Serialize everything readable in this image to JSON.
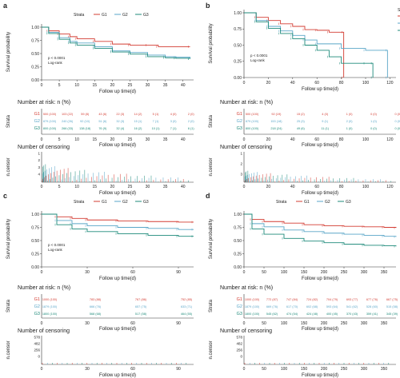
{
  "colors": {
    "G1": "#d33c32",
    "G2": "#5aa6c8",
    "G3": "#1d8a7a",
    "axis": "#333333",
    "grey": "#666666"
  },
  "common": {
    "strata_title": "Strata",
    "strata_labels": [
      "G1",
      "G2",
      "G3"
    ],
    "ylabel_surv": "Survival probability",
    "ylabel_risk": "Strata",
    "ylabel_cens": "n.censor",
    "xlabel": "Follow up time(d)",
    "risk_title": "Number at risk: n (%)",
    "cens_title": "Number of censoring",
    "yticks": [
      "0.00",
      "0.25",
      "0.50",
      "0.75",
      "1.00"
    ]
  },
  "panels": [
    {
      "letter": "a",
      "legend": "top",
      "pvalue": "p < 0.0001",
      "test": "Log-rank",
      "x_ticks": [
        0,
        5,
        10,
        15,
        20,
        25,
        30,
        35,
        40
      ],
      "xmax": 43,
      "risk_table": [
        [
          "500 (100)",
          "103 (22)",
          "59 (8)",
          "43 (6)",
          "22 (3)",
          "14 (2)",
          "5 (1)",
          "4 (0)",
          "2 (0)"
        ],
        [
          "879 (100)",
          "240 (26)",
          "92 (10)",
          "51 (6)",
          "32 (3)",
          "15 (1)",
          "7 (1)",
          "3 (0)",
          "2 (0)"
        ],
        [
          "800 (100)",
          "266 (33)",
          "138 (18)",
          "76 (9)",
          "32 (4)",
          "16 (2)",
          "10 (1)",
          "7 (1)",
          "6 (1)"
        ]
      ],
      "cens_ticks": [
        "1",
        "2",
        "3",
        "4"
      ],
      "chart_data": {
        "type": "line",
        "title": "",
        "xlabel": "Follow up time(d)",
        "ylabel": "Survival probability",
        "ylim": [
          0,
          1
        ],
        "xlim": [
          0,
          43
        ],
        "series": [
          {
            "name": "G1",
            "x": [
              0,
              2,
              5,
              8,
              10,
              15,
              20,
              25,
              30,
              33,
              42
            ],
            "y": [
              1.0,
              0.93,
              0.87,
              0.82,
              0.78,
              0.73,
              0.68,
              0.66,
              0.66,
              0.63,
              0.63
            ]
          },
          {
            "name": "G2",
            "x": [
              0,
              2,
              5,
              8,
              10,
              15,
              20,
              25,
              30,
              35,
              38,
              42
            ],
            "y": [
              1.0,
              0.9,
              0.8,
              0.73,
              0.7,
              0.63,
              0.55,
              0.52,
              0.47,
              0.44,
              0.43,
              0.4
            ]
          },
          {
            "name": "G3",
            "x": [
              0,
              2,
              5,
              8,
              10,
              15,
              20,
              25,
              30,
              35,
              38,
              42
            ],
            "y": [
              1.0,
              0.88,
              0.77,
              0.7,
              0.66,
              0.6,
              0.53,
              0.49,
              0.44,
              0.42,
              0.41,
              0.4
            ]
          }
        ]
      }
    },
    {
      "letter": "b",
      "legend": "right",
      "pvalue": "p < 0.0001",
      "test": "Log-rank",
      "x_ticks": [
        0,
        20,
        40,
        60,
        80,
        100,
        120
      ],
      "xmax": 125,
      "risk_table": [
        [
          "500 (100)",
          "92 (19)",
          "15 (2)",
          "4 (0)",
          "1 (0)",
          "0 (0)",
          "0 (0)"
        ],
        [
          "879 (100)",
          "153 (18)",
          "25 (3)",
          "9 (1)",
          "2 (0)",
          "1 (0)",
          "0 (0)"
        ],
        [
          "800 (100)",
          "218 (24)",
          "49 (6)",
          "11 (1)",
          "1 (0)",
          "0 (0)",
          "0 (0)"
        ]
      ],
      "cens_ticks": [
        "1",
        "2",
        "3"
      ],
      "chart_data": {
        "type": "line",
        "title": "",
        "xlabel": "Follow up time(d)",
        "ylabel": "Survival probability",
        "ylim": [
          0,
          1
        ],
        "xlim": [
          0,
          125
        ],
        "series": [
          {
            "name": "G1",
            "x": [
              0,
              10,
              20,
              30,
              40,
              50,
              60,
              70,
              82,
              82
            ],
            "y": [
              1.0,
              0.93,
              0.88,
              0.83,
              0.79,
              0.74,
              0.73,
              0.7,
              0.7,
              0.0
            ]
          },
          {
            "name": "G2",
            "x": [
              0,
              10,
              20,
              30,
              40,
              50,
              60,
              80,
              100,
              118,
              118
            ],
            "y": [
              1.0,
              0.88,
              0.79,
              0.72,
              0.65,
              0.58,
              0.52,
              0.45,
              0.42,
              0.42,
              0.0
            ]
          },
          {
            "name": "G3",
            "x": [
              0,
              10,
              20,
              30,
              40,
              50,
              60,
              70,
              80,
              100,
              106,
              106
            ],
            "y": [
              1.0,
              0.86,
              0.76,
              0.68,
              0.6,
              0.5,
              0.42,
              0.32,
              0.22,
              0.22,
              0.22,
              0.0
            ]
          }
        ]
      }
    },
    {
      "letter": "c",
      "legend": "top",
      "pvalue": "p < 0.0001",
      "test": "Log-rank",
      "x_ticks": [
        0,
        30,
        60,
        90
      ],
      "xmax": 100,
      "risk_table": [
        [
          "1000 (100)",
          "783 (88)",
          "767 (86)",
          "752 (85)"
        ],
        [
          "1879 (100)",
          "666 (76)",
          "657 (75)",
          "633 (71)"
        ],
        [
          "1800 (100)",
          "568 (68)",
          "517 (58)",
          "464 (55)"
        ]
      ],
      "cens_ticks": [
        "578",
        "482",
        "256",
        "0"
      ],
      "chart_data": {
        "type": "line",
        "title": "",
        "xlabel": "Follow up time(d)",
        "ylabel": "Survival probability",
        "ylim": [
          0,
          1
        ],
        "xlim": [
          0,
          100
        ],
        "series": [
          {
            "name": "G1",
            "x": [
              0,
              10,
              20,
              30,
              50,
              70,
              90,
              100
            ],
            "y": [
              1.0,
              0.95,
              0.92,
              0.89,
              0.87,
              0.86,
              0.85,
              0.85
            ]
          },
          {
            "name": "G2",
            "x": [
              0,
              10,
              20,
              30,
              50,
              70,
              90,
              100
            ],
            "y": [
              1.0,
              0.88,
              0.82,
              0.78,
              0.75,
              0.73,
              0.71,
              0.71
            ]
          },
          {
            "name": "G3",
            "x": [
              0,
              10,
              20,
              30,
              50,
              70,
              90,
              100
            ],
            "y": [
              1.0,
              0.8,
              0.72,
              0.67,
              0.63,
              0.6,
              0.58,
              0.58
            ]
          }
        ]
      }
    },
    {
      "letter": "d",
      "legend": "top",
      "pvalue": "",
      "test": "",
      "x_ticks": [
        0,
        50,
        100,
        150,
        200,
        250,
        300,
        350
      ],
      "xmax": 380,
      "risk_table": [
        [
          "1000 (100)",
          "772 (87)",
          "747 (84)",
          "724 (82)",
          "704 (79)",
          "693 (77)",
          "677 (76)",
          "667 (75)"
        ],
        [
          "1879 (100)",
          "669 (76)",
          "617 (70)",
          "602 (68)",
          "593 (64)",
          "541 (62)",
          "528 (60)",
          "515 (58)"
        ],
        [
          "1800 (100)",
          "545 (62)",
          "474 (54)",
          "424 (48)",
          "400 (45)",
          "370 (43)",
          "359 (41)",
          "345 (39)"
        ]
      ],
      "cens_ticks": [
        "578",
        "482",
        "256",
        "0"
      ],
      "chart_data": {
        "type": "line",
        "title": "",
        "xlabel": "Follow up time(d)",
        "ylabel": "Survival probability",
        "ylim": [
          0,
          1
        ],
        "xlim": [
          0,
          380
        ],
        "series": [
          {
            "name": "G1",
            "x": [
              0,
              20,
              50,
              100,
              150,
              200,
              250,
              300,
              350,
              380
            ],
            "y": [
              1.0,
              0.9,
              0.86,
              0.83,
              0.8,
              0.78,
              0.77,
              0.76,
              0.75,
              0.74
            ]
          },
          {
            "name": "G2",
            "x": [
              0,
              20,
              50,
              100,
              150,
              200,
              250,
              300,
              350,
              380
            ],
            "y": [
              1.0,
              0.82,
              0.76,
              0.7,
              0.67,
              0.64,
              0.62,
              0.6,
              0.58,
              0.57
            ]
          },
          {
            "name": "G3",
            "x": [
              0,
              20,
              50,
              100,
              150,
              200,
              250,
              300,
              350,
              380
            ],
            "y": [
              1.0,
              0.72,
              0.62,
              0.54,
              0.49,
              0.46,
              0.43,
              0.41,
              0.4,
              0.39
            ]
          }
        ]
      }
    }
  ]
}
